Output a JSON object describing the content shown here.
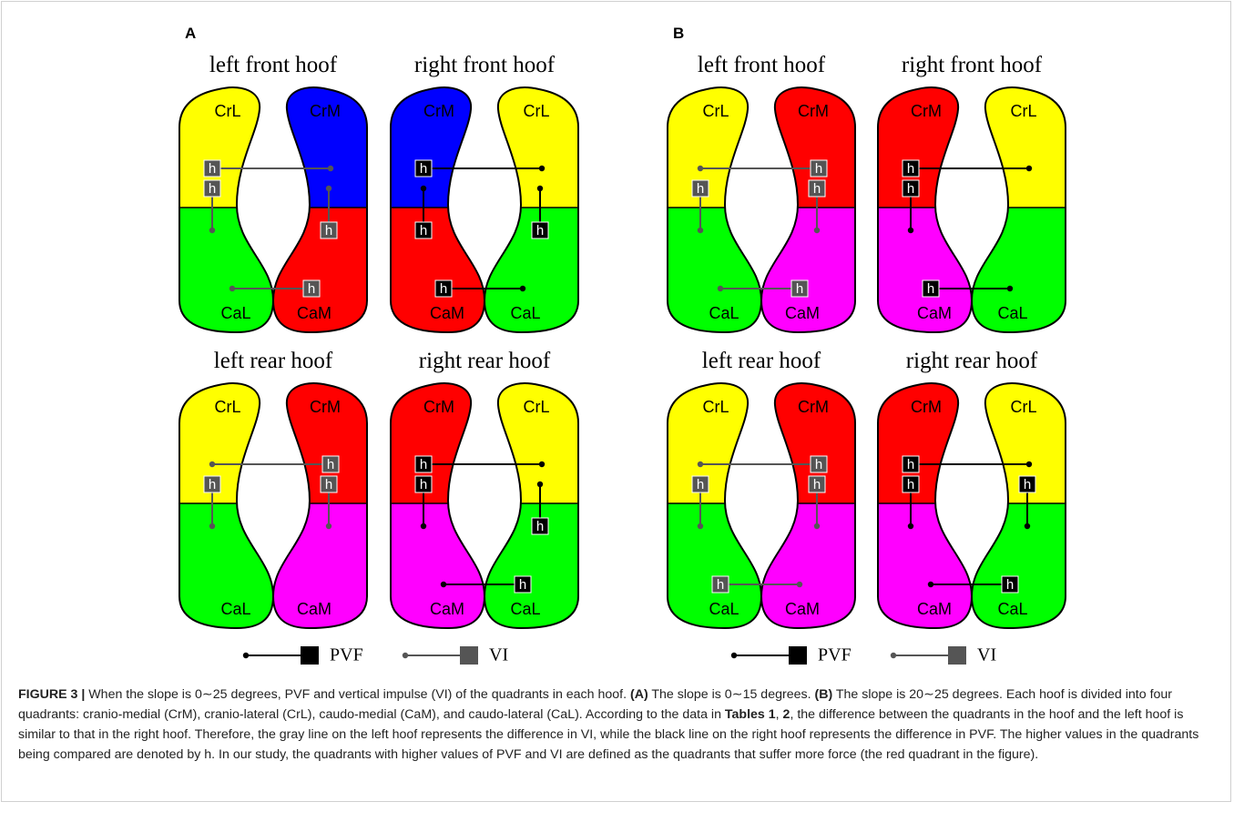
{
  "panels": [
    {
      "label": "A",
      "hoofs": [
        {
          "title": "left front hoof",
          "measure": "VI",
          "claws": [
            {
              "top": {
                "label": "CrL",
                "color": "#ffff00"
              },
              "bottom": {
                "label": "CaL",
                "color": "#00ff00"
              }
            },
            {
              "top": {
                "label": "CrM",
                "color": "#0000ff"
              },
              "bottom": {
                "label": "CaM",
                "color": "#ff0000"
              }
            }
          ],
          "comparisons": [
            {
              "high": "CrL",
              "low": "CrM",
              "mark": "h"
            },
            {
              "high": "CrL",
              "low": "CaL",
              "mark": "h"
            },
            {
              "high": "CaM",
              "low": "CrM",
              "mark": "h"
            },
            {
              "high": "CaM",
              "low": "CaL",
              "mark": "h"
            }
          ]
        },
        {
          "title": "right front hoof",
          "measure": "PVF",
          "claws": [
            {
              "top": {
                "label": "CrM",
                "color": "#0000ff"
              },
              "bottom": {
                "label": "CaM",
                "color": "#ff0000"
              }
            },
            {
              "top": {
                "label": "CrL",
                "color": "#ffff00"
              },
              "bottom": {
                "label": "CaL",
                "color": "#00ff00"
              }
            }
          ],
          "comparisons": [
            {
              "high": "CrM",
              "low": "CrL",
              "mark": "h"
            },
            {
              "high": "CaM",
              "low": "CrM",
              "mark": "h"
            },
            {
              "high": "CaL",
              "low": "CrL",
              "mark": "h"
            },
            {
              "high": "CaM",
              "low": "CaL",
              "mark": "h"
            }
          ]
        },
        {
          "title": "left rear hoof",
          "measure": "VI",
          "claws": [
            {
              "top": {
                "label": "CrL",
                "color": "#ffff00"
              },
              "bottom": {
                "label": "CaL",
                "color": "#00ff00"
              }
            },
            {
              "top": {
                "label": "CrM",
                "color": "#ff0000"
              },
              "bottom": {
                "label": "CaM",
                "color": "#ff00ff"
              }
            }
          ],
          "comparisons": [
            {
              "high": "CrM",
              "low": "CrL",
              "mark": "h"
            },
            {
              "high": "CrL",
              "low": "CaL",
              "mark": "h"
            },
            {
              "high": "CrM",
              "low": "CaM",
              "mark": "h"
            }
          ]
        },
        {
          "title": "right rear hoof",
          "measure": "PVF",
          "claws": [
            {
              "top": {
                "label": "CrM",
                "color": "#ff0000"
              },
              "bottom": {
                "label": "CaM",
                "color": "#ff00ff"
              }
            },
            {
              "top": {
                "label": "CrL",
                "color": "#ffff00"
              },
              "bottom": {
                "label": "CaL",
                "color": "#00ff00"
              }
            }
          ],
          "comparisons": [
            {
              "high": "CrM",
              "low": "CrL",
              "mark": "h"
            },
            {
              "high": "CrM",
              "low": "CaM",
              "mark": "h"
            },
            {
              "high": "CaL",
              "low": "CrL",
              "mark": "h"
            },
            {
              "high": "CaL",
              "low": "CaM",
              "mark": "h"
            }
          ]
        }
      ],
      "legend": [
        {
          "label": "PVF",
          "color": "#000000"
        },
        {
          "label": "VI",
          "color": "#555555"
        }
      ]
    },
    {
      "label": "B",
      "hoofs": [
        {
          "title": "left front hoof",
          "measure": "VI",
          "claws": [
            {
              "top": {
                "label": "CrL",
                "color": "#ffff00"
              },
              "bottom": {
                "label": "CaL",
                "color": "#00ff00"
              }
            },
            {
              "top": {
                "label": "CrM",
                "color": "#ff0000"
              },
              "bottom": {
                "label": "CaM",
                "color": "#ff00ff"
              }
            }
          ],
          "comparisons": [
            {
              "high": "CrM",
              "low": "CrL",
              "mark": "h"
            },
            {
              "high": "CrL",
              "low": "CaL",
              "mark": "h"
            },
            {
              "high": "CrM",
              "low": "CaM",
              "mark": "h"
            },
            {
              "high": "CaM",
              "low": "CaL",
              "mark": "h"
            }
          ]
        },
        {
          "title": "right front hoof",
          "measure": "PVF",
          "claws": [
            {
              "top": {
                "label": "CrM",
                "color": "#ff0000"
              },
              "bottom": {
                "label": "CaM",
                "color": "#ff00ff"
              }
            },
            {
              "top": {
                "label": "CrL",
                "color": "#ffff00"
              },
              "bottom": {
                "label": "CaL",
                "color": "#00ff00"
              }
            }
          ],
          "comparisons": [
            {
              "high": "CrM",
              "low": "CrL",
              "mark": "h"
            },
            {
              "high": "CrM",
              "low": "CaM",
              "mark": "h"
            },
            {
              "high": "CaM",
              "low": "CaL",
              "mark": "h"
            }
          ]
        },
        {
          "title": "left rear hoof",
          "measure": "VI",
          "claws": [
            {
              "top": {
                "label": "CrL",
                "color": "#ffff00"
              },
              "bottom": {
                "label": "CaL",
                "color": "#00ff00"
              }
            },
            {
              "top": {
                "label": "CrM",
                "color": "#ff0000"
              },
              "bottom": {
                "label": "CaM",
                "color": "#ff00ff"
              }
            }
          ],
          "comparisons": [
            {
              "high": "CrM",
              "low": "CrL",
              "mark": "h"
            },
            {
              "high": "CrL",
              "low": "CaL",
              "mark": "h"
            },
            {
              "high": "CrM",
              "low": "CaM",
              "mark": "h"
            },
            {
              "high": "CaL",
              "low": "CaM",
              "mark": "h"
            }
          ]
        },
        {
          "title": "right rear hoof",
          "measure": "PVF",
          "claws": [
            {
              "top": {
                "label": "CrM",
                "color": "#ff0000"
              },
              "bottom": {
                "label": "CaM",
                "color": "#ff00ff"
              }
            },
            {
              "top": {
                "label": "CrL",
                "color": "#ffff00"
              },
              "bottom": {
                "label": "CaL",
                "color": "#00ff00"
              }
            }
          ],
          "comparisons": [
            {
              "high": "CrM",
              "low": "CrL",
              "mark": "h"
            },
            {
              "high": "CrM",
              "low": "CaM",
              "mark": "h"
            },
            {
              "high": "CrL",
              "low": "CaL",
              "mark": "h"
            },
            {
              "high": "CaL",
              "low": "CaM",
              "mark": "h"
            }
          ]
        }
      ],
      "legend": [
        {
          "label": "PVF",
          "color": "#000000"
        },
        {
          "label": "VI",
          "color": "#555555"
        }
      ]
    }
  ],
  "caption": {
    "runs": [
      {
        "text": "FIGURE 3 |",
        "bold": true
      },
      {
        "text": " When the slope is 0∼25 degrees, PVF and vertical impulse (VI) of the quadrants in each hoof. ",
        "bold": false
      },
      {
        "text": "(A)",
        "bold": true
      },
      {
        "text": " The slope is 0∼15 degrees. ",
        "bold": false
      },
      {
        "text": "(B)",
        "bold": true
      },
      {
        "text": " The slope is 20∼25 degrees. Each hoof is divided into four quadrants: cranio-medial (CrM), cranio-lateral (CrL), caudo-medial (CaM), and caudo-lateral (CaL). According to the data in ",
        "bold": false
      },
      {
        "text": "Tables 1",
        "bold": true
      },
      {
        "text": ", ",
        "bold": false
      },
      {
        "text": "2",
        "bold": true
      },
      {
        "text": ", the difference between the quadrants in the hoof and the left hoof is similar to that in the right hoof. Therefore, the gray line on the left hoof represents the difference in VI, while the black line on the right hoof represents the difference in PVF. The higher values in the quadrants being compared are denoted by h. In our study, the quadrants with higher values of PVF and VI are defined as the quadrants that suffer more force (the red quadrant in the figure).",
        "bold": false
      }
    ]
  }
}
